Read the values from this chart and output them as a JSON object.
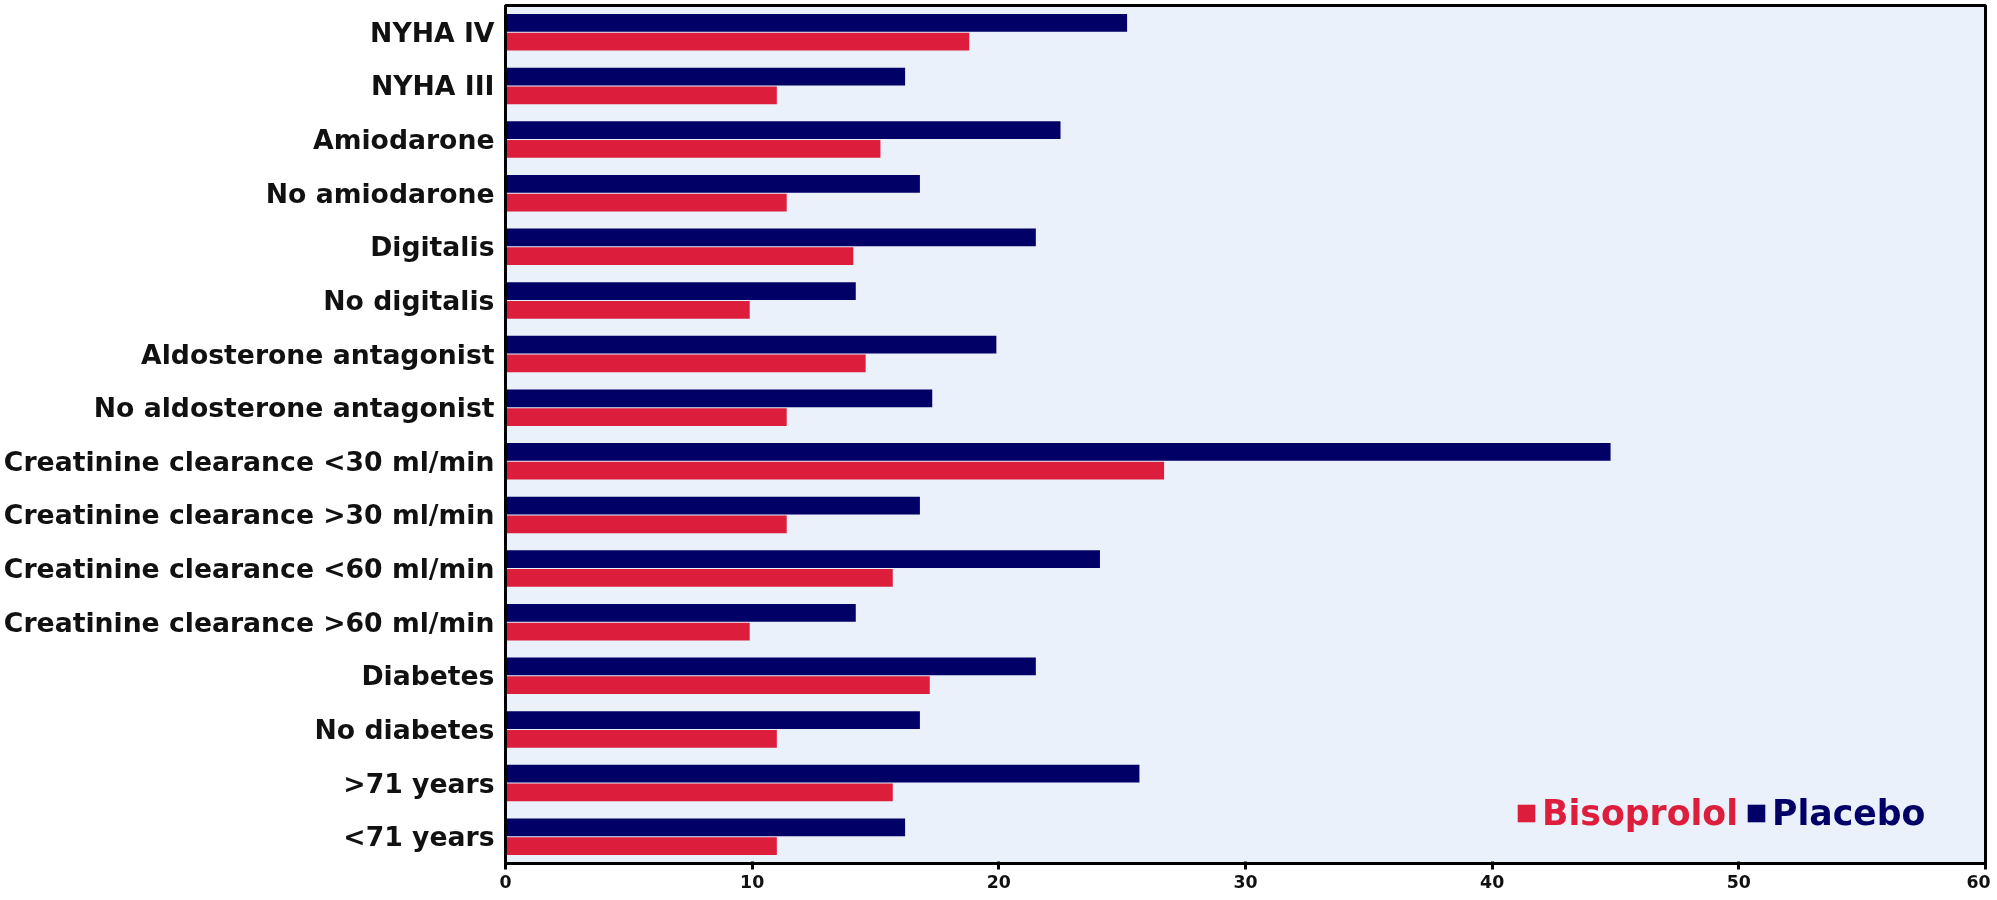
{
  "chart_data": {
    "type": "bar",
    "orientation": "horizontal",
    "categories": [
      "NYHA IV",
      "NYHA III",
      "Amiodarone",
      "No amiodarone",
      "Digitalis",
      "No digitalis",
      "Aldosterone antagonist",
      "No aldosterone antagonist",
      "Creatinine clearance <30 ml/min",
      "Creatinine clearance >30 ml/min",
      "Creatinine clearance <60 ml/min",
      "Creatinine clearance >60 ml/min",
      "Diabetes",
      "No diabetes",
      ">71 years",
      "<71 years"
    ],
    "series": [
      {
        "name": "Placebo",
        "color": "#000066",
        "values": [
          25.2,
          16.2,
          22.5,
          16.8,
          21.5,
          14.2,
          19.9,
          17.3,
          44.8,
          16.8,
          24.1,
          14.2,
          21.5,
          16.8,
          25.7,
          16.2
        ]
      },
      {
        "name": "Bisoprolol",
        "color": "#dc1e3c",
        "values": [
          18.8,
          11.0,
          15.2,
          11.4,
          14.1,
          9.9,
          14.6,
          11.4,
          26.7,
          11.4,
          15.7,
          9.9,
          17.2,
          11.0,
          15.7,
          11.0
        ]
      }
    ],
    "xlim": [
      0,
      60
    ],
    "xticks": [
      0,
      10,
      20,
      30,
      40,
      50,
      60
    ],
    "grid": false,
    "legend": "bottom right"
  }
}
